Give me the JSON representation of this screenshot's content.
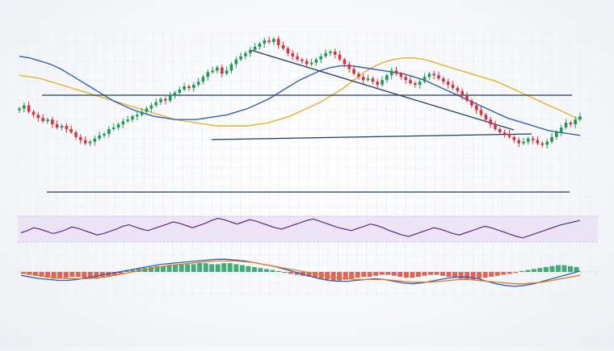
{
  "chart_data": [
    {
      "type": "candlestick",
      "title": "",
      "xlabel": "",
      "ylabel": "",
      "grid": true,
      "ylim": [
        0,
        100
      ],
      "candles_close": [
        62,
        64,
        60,
        58,
        56,
        54,
        55,
        52,
        50,
        51,
        49,
        47,
        44,
        42,
        40,
        41,
        43,
        45,
        46,
        49,
        50,
        52,
        54,
        55,
        57,
        58,
        60,
        62,
        64,
        66,
        68,
        67,
        70,
        72,
        74,
        76,
        75,
        77,
        79,
        82,
        85,
        86,
        88,
        84,
        86,
        90,
        93,
        95,
        97,
        99,
        101,
        103,
        105,
        104,
        106,
        102,
        100,
        97,
        95,
        93,
        92,
        90,
        91,
        93,
        95,
        97,
        98,
        96,
        93,
        90,
        87,
        84,
        82,
        80,
        81,
        79,
        77,
        80,
        83,
        86,
        84,
        82,
        80,
        78,
        77,
        79,
        82,
        84,
        83,
        81,
        79,
        77,
        75,
        73,
        70,
        67,
        64,
        61,
        58,
        55,
        52,
        49,
        47,
        46,
        44,
        42,
        40,
        41,
        43,
        42,
        40,
        39,
        41,
        44,
        47,
        50,
        53,
        52,
        55,
        57
      ],
      "overlays": [
        {
          "name": "",
          "color": "#e3b22a",
          "values": [
            83,
            82,
            81,
            79,
            77,
            75,
            73,
            71,
            69,
            67,
            65,
            63,
            61,
            59,
            57,
            55,
            54,
            53,
            52,
            51,
            51,
            51,
            51,
            52,
            53,
            55,
            57,
            60,
            63,
            66,
            70,
            74,
            79,
            84,
            88,
            91,
            93,
            94,
            94,
            93,
            91,
            89,
            87,
            85,
            83,
            81,
            79,
            76,
            73,
            70,
            67,
            64,
            61,
            58,
            55
          ]
        },
        {
          "name": "",
          "color": "#2b62b4",
          "values": [
            95,
            94,
            92,
            90,
            87,
            83,
            79,
            75,
            71,
            67,
            64,
            61,
            59,
            57,
            56,
            55,
            55,
            55,
            56,
            57,
            58,
            60,
            62,
            65,
            68,
            72,
            76,
            80,
            83,
            86,
            88,
            89,
            89,
            88,
            87,
            86,
            85,
            84,
            82,
            80,
            77,
            74,
            71,
            68,
            65,
            62,
            59,
            56,
            54,
            52,
            50,
            48,
            47,
            46,
            45
          ]
        }
      ],
      "support_resistance": [
        {
          "kind": "horizontal",
          "color": "#1f3a5f"
        },
        {
          "kind": "horizontal",
          "color": "#1f3a5f"
        },
        {
          "kind": "horizontal",
          "color": "#1f3a5f"
        },
        {
          "kind": "trendline",
          "color": "#1f3a5f"
        }
      ]
    },
    {
      "type": "line",
      "title": "",
      "color": "#5b2a86",
      "band_color": "#e8ddf4",
      "values": [
        55,
        58,
        62,
        60,
        57,
        54,
        56,
        59,
        63,
        61,
        58,
        55,
        52,
        54,
        57,
        60,
        64,
        66,
        63,
        60,
        58,
        61,
        64,
        67,
        70,
        68,
        65,
        62,
        65,
        68,
        72,
        75,
        73,
        70,
        67,
        70,
        73,
        71,
        68,
        65,
        62,
        60,
        63,
        66,
        69,
        72,
        74,
        71,
        68,
        65,
        62,
        60,
        58,
        61,
        64,
        67,
        65,
        62,
        58,
        55,
        52,
        50,
        53,
        56,
        59,
        62,
        60,
        57,
        54,
        52,
        55,
        58,
        61,
        64,
        62,
        59,
        56,
        53,
        50,
        48,
        51,
        54,
        57,
        60,
        63,
        66,
        68,
        70,
        72
      ]
    },
    {
      "type": "bar+line",
      "title": "",
      "histogram": [
        -2,
        -3,
        -4,
        -5,
        -6,
        -7,
        -7,
        -6,
        -5,
        -5,
        -6,
        -7,
        -7,
        -6,
        -5,
        -4,
        -2,
        1,
        2,
        3,
        4,
        5,
        6,
        6,
        7,
        7,
        8,
        8,
        8,
        9,
        9,
        8,
        8,
        9,
        9,
        8,
        7,
        6,
        5,
        4,
        3,
        2,
        1,
        -1,
        -2,
        -3,
        -4,
        -5,
        -6,
        -7,
        -8,
        -9,
        -9,
        -8,
        -7,
        -6,
        -5,
        -5,
        -4,
        -3,
        -3,
        -4,
        -5,
        -6,
        -6,
        -5,
        -4,
        -3,
        -3,
        -4,
        -5,
        -6,
        -7,
        -8,
        -8,
        -7,
        -6,
        -5,
        -4,
        -3,
        -2,
        -1,
        1,
        2,
        3,
        4,
        5,
        6,
        7,
        7,
        6,
        5
      ],
      "series": [
        {
          "name": "",
          "color": "#2b62b4",
          "values": [
            -4,
            -6,
            -8,
            -9,
            -10,
            -10,
            -9,
            -7,
            -5,
            -3,
            -1,
            1,
            3,
            5,
            7,
            9,
            10,
            11,
            12,
            13,
            14,
            15,
            15,
            14,
            13,
            11,
            9,
            7,
            4,
            1,
            -2,
            -5,
            -8,
            -10,
            -11,
            -11,
            -10,
            -9,
            -8,
            -9,
            -11,
            -13,
            -14,
            -13,
            -11,
            -9,
            -7,
            -6,
            -6,
            -8,
            -11,
            -14,
            -16,
            -17,
            -16,
            -14,
            -11,
            -8,
            -5,
            -2,
            1
          ]
        },
        {
          "name": "",
          "color": "#e07a2b",
          "values": [
            -1,
            -2,
            -4,
            -6,
            -7,
            -8,
            -8,
            -8,
            -7,
            -6,
            -4,
            -2,
            0,
            2,
            4,
            6,
            8,
            9,
            10,
            11,
            12,
            13,
            13,
            13,
            12,
            11,
            9,
            7,
            5,
            3,
            1,
            -1,
            -3,
            -5,
            -7,
            -8,
            -9,
            -9,
            -9,
            -9,
            -10,
            -11,
            -12,
            -12,
            -12,
            -11,
            -10,
            -9,
            -9,
            -10,
            -11,
            -12,
            -13,
            -14,
            -14,
            -13,
            -12,
            -10,
            -8,
            -6,
            -4
          ]
        }
      ]
    }
  ]
}
